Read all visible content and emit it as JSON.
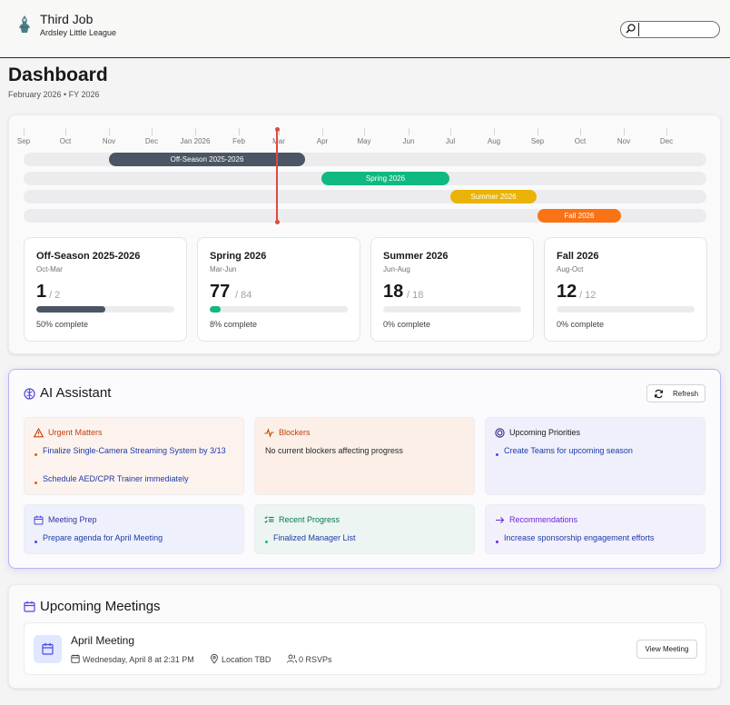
{
  "header": {
    "org_title": "Third Job",
    "org_subtitle": "Ardsley Little League",
    "search_placeholder": ""
  },
  "page": {
    "title": "Dashboard",
    "subtitle": "February 2026 • FY 2026"
  },
  "timeline": {
    "months": [
      "Sep",
      "Oct",
      "Nov",
      "Dec",
      "Jan 2026",
      "Feb",
      "Mar",
      "Apr",
      "May",
      "Jun",
      "Jul",
      "Aug",
      "Sep",
      "Oct",
      "Nov",
      "Dec"
    ],
    "bars": [
      {
        "label": "Off-Season 2025-2026",
        "color": "#4b5563"
      },
      {
        "label": "Spring 2026",
        "color": "#10b981"
      },
      {
        "label": "Summer 2026",
        "color": "#eab308"
      },
      {
        "label": "Fall 2026",
        "color": "#f97316"
      }
    ]
  },
  "seasons": [
    {
      "name": "Off-Season 2025-2026",
      "range": "Oct-Mar",
      "done": "1",
      "total": "/ 2",
      "progress": 0.5,
      "pct_label": "50% complete",
      "color": "#4b5563"
    },
    {
      "name": "Spring 2026",
      "range": "Mar-Jun",
      "done": "77",
      "total": "/ 84",
      "progress": 0.08,
      "pct_label": "8% complete",
      "color": "#10b981"
    },
    {
      "name": "Summer 2026",
      "range": "Jun-Aug",
      "done": "18",
      "total": "/ 18",
      "progress": 0,
      "pct_label": "0% complete",
      "color": "#eab308"
    },
    {
      "name": "Fall 2026",
      "range": "Aug-Oct",
      "done": "12",
      "total": "/ 12",
      "progress": 0,
      "pct_label": "0% complete",
      "color": "#f97316"
    }
  ],
  "ai": {
    "title": "AI Assistant",
    "refresh_label": "Refresh",
    "panels": {
      "urgent": {
        "title": "Urgent Matters",
        "items": [
          "Finalize Single-Camera Streaming System by 3/13",
          "Schedule AED/CPR Trainer immediately"
        ]
      },
      "blockers": {
        "title": "Blockers",
        "text": "No current blockers affecting progress"
      },
      "priorities": {
        "title": "Upcoming Priorities",
        "items": [
          "Create Teams for upcoming season"
        ]
      },
      "meeting_prep": {
        "title": "Meeting Prep",
        "items": [
          "Prepare agenda for April Meeting"
        ]
      },
      "progress": {
        "title": "Recent Progress",
        "items": [
          "Finalized Manager List"
        ]
      },
      "recommendations": {
        "title": "Recommendations",
        "items": [
          "Increase sponsorship engagement efforts"
        ]
      }
    }
  },
  "meetings": {
    "title": "Upcoming Meetings",
    "items": [
      {
        "name": "April Meeting",
        "datetime": "Wednesday, April 8 at 2:31 PM",
        "location": "Location TBD",
        "rsvps": "0 RSVPs",
        "view_label": "View Meeting"
      }
    ]
  },
  "colors": {
    "accent": "#4f46e5",
    "today_marker": "#dc4b3e",
    "urgent": "#c2410c",
    "progress": "#047857",
    "priorities": "#312e81",
    "recommendations": "#6d28d9"
  }
}
